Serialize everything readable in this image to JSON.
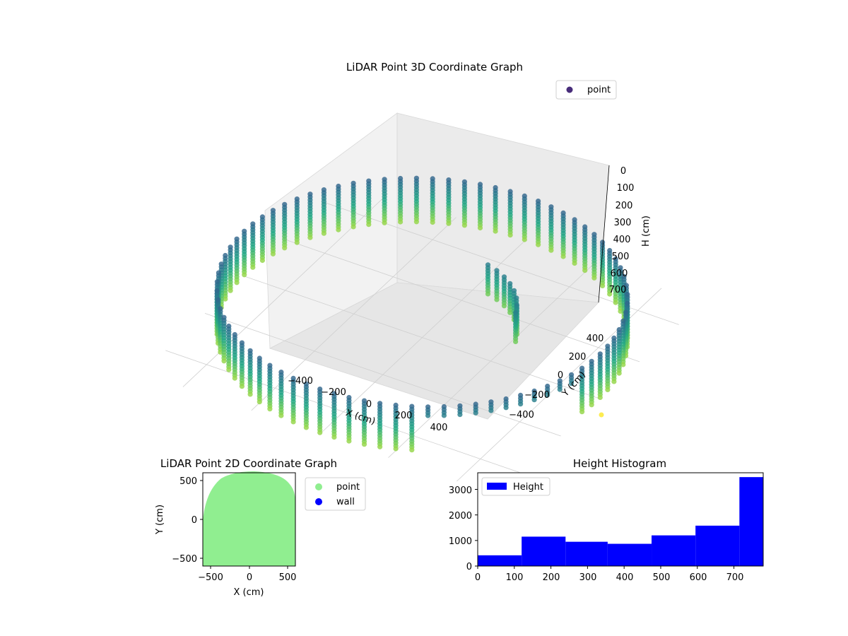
{
  "chart_data": [
    {
      "type": "scatter",
      "projection": "3d",
      "title": "LiDAR Point 3D Coordinate Graph",
      "xlabel": "X (cm)",
      "ylabel": "Y (cm)",
      "zlabel": "H (cm)",
      "xlim": [
        -520,
        520
      ],
      "ylim": [
        -520,
        520
      ],
      "zlim": [
        750,
        0
      ],
      "z_axis_inverted": true,
      "x_ticks": [
        "−400",
        "−200",
        "0",
        "200",
        "400"
      ],
      "y_ticks": [
        "−400",
        "−200",
        "0",
        "200",
        "400"
      ],
      "z_ticks": [
        "0",
        "100",
        "200",
        "300",
        "400",
        "500",
        "600",
        "700"
      ],
      "legend": [
        "point"
      ],
      "legend_placement": "top-right",
      "grid": true,
      "colormap": "viridis",
      "colored_by": "height",
      "series": [
        {
          "name": "point",
          "description_shape": "cylindrical wall of radius ~520 cm, heights 0-780 cm, open arc on the near-right side, plus an inner structure near the back-right",
          "rings_height": [
            160,
            200,
            240,
            280,
            320,
            360,
            400,
            440,
            480,
            520,
            560,
            600,
            640,
            680,
            720,
            760
          ],
          "radius": 520
        }
      ],
      "colors": {
        "dark": "#440154",
        "mid_dark": "#3b528b",
        "mid": "#21918c",
        "mid_light": "#5ec962",
        "light": "#fde725"
      }
    },
    {
      "type": "scatter",
      "title": "LiDAR Point 2D Coordinate Graph",
      "xlabel": "X (cm)",
      "ylabel": "Y (cm)",
      "xlim": [
        -600,
        600
      ],
      "ylim": [
        -600,
        600
      ],
      "x_ticks": [
        "−500",
        "0",
        "500"
      ],
      "y_ticks": [
        "−500",
        "0",
        "500"
      ],
      "legend": [
        "point",
        "wall"
      ],
      "legend_placement": "outside-right",
      "series": [
        {
          "name": "point",
          "color": "#90ee90"
        },
        {
          "name": "wall",
          "color": "#0000ff"
        }
      ]
    },
    {
      "type": "bar",
      "title": "Height Histogram",
      "legend": [
        "Height"
      ],
      "legend_placement": "top-left",
      "xlim": [
        0,
        780
      ],
      "ylim": [
        0,
        3650
      ],
      "x_ticks": [
        "0",
        "100",
        "200",
        "300",
        "400",
        "500",
        "600",
        "700"
      ],
      "y_ticks": [
        "0",
        "1000",
        "2000",
        "3000"
      ],
      "bin_edges": [
        0,
        120,
        240,
        355,
        475,
        595,
        715,
        780
      ],
      "values": [
        420,
        1150,
        950,
        870,
        1200,
        1580,
        3480
      ],
      "color": "#0000ff"
    }
  ]
}
